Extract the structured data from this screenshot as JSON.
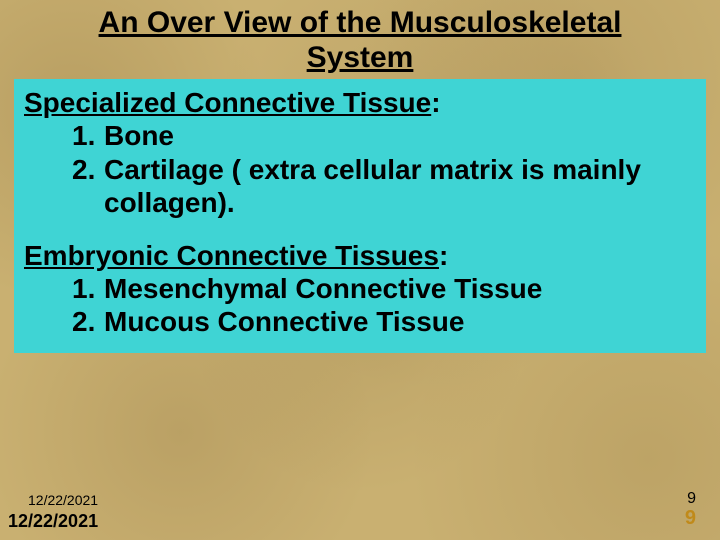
{
  "colors": {
    "background_base": "#c9b071",
    "content_box_bg": "#3fd4d4",
    "text": "#000000",
    "page2_color": "#c08a1a"
  },
  "typography": {
    "title_fontsize": 30,
    "body_fontsize": 28,
    "date_small_fontsize": 14,
    "date_large_fontsize": 18,
    "page_small_fontsize": 16,
    "page_large_fontsize": 20,
    "font_family": "Arial"
  },
  "title": "An Over View of the Musculoskeletal System",
  "sections": [
    {
      "heading_underlined": "Specialized Connective Tissue",
      "heading_rest": ":",
      "items": [
        {
          "num": "1.",
          "text": "Bone"
        },
        {
          "num": "2.",
          "text": "Cartilage ( extra cellular matrix  is mainly collagen)."
        }
      ]
    },
    {
      "heading_underlined": "Embryonic Connective Tissues",
      "heading_rest": ":",
      "items": [
        {
          "num": "1.",
          "text": "Mesenchymal Connective Tissue"
        },
        {
          "num": "2.",
          "text": "Mucous Connective Tissue"
        }
      ]
    }
  ],
  "footer": {
    "date1": "12/22/2021",
    "date2": "12/22/2021",
    "page1": "9",
    "page2": "9"
  }
}
